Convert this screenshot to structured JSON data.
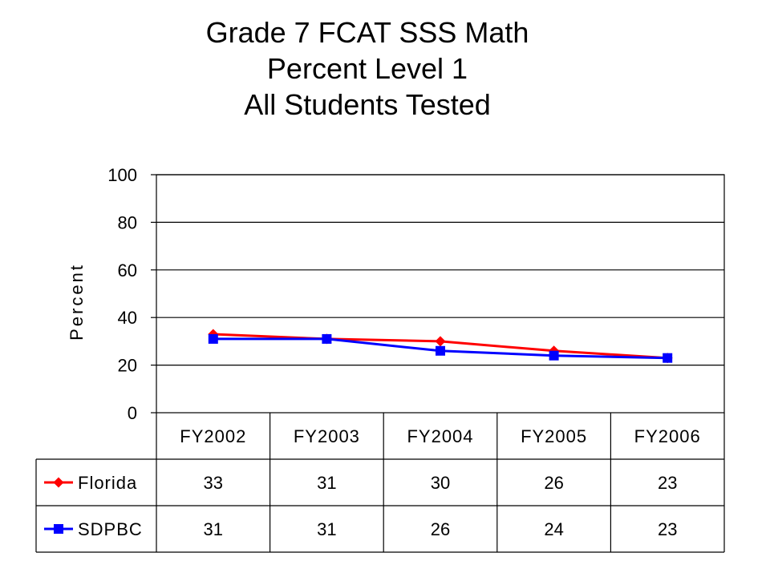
{
  "chart_data": {
    "type": "line",
    "title_lines": [
      "Grade 7 FCAT SSS Math",
      "Percent Level 1",
      "All Students Tested"
    ],
    "ylabel": "Percent",
    "xlabel": "",
    "ylim": [
      0,
      100
    ],
    "yticks": [
      0,
      20,
      40,
      60,
      80,
      100
    ],
    "categories": [
      "FY2002",
      "FY2003",
      "FY2004",
      "FY2005",
      "FY2006"
    ],
    "grid": "horizontal",
    "legend": "data-table",
    "series": [
      {
        "name": "Florida",
        "values": [
          33,
          31,
          30,
          26,
          23
        ],
        "color": "#ff0000",
        "marker": "diamond"
      },
      {
        "name": "SDPBC",
        "values": [
          31,
          31,
          26,
          24,
          23
        ],
        "color": "#0000ff",
        "marker": "square"
      }
    ]
  }
}
